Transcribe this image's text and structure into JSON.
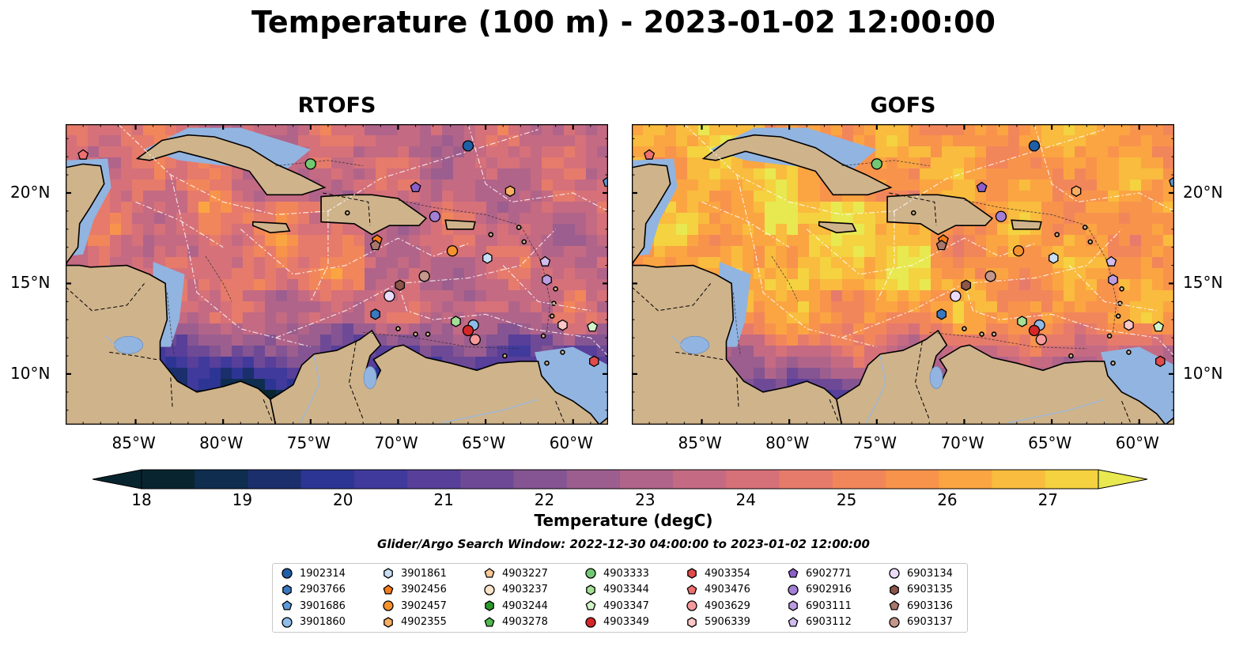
{
  "title": "Temperature (100 m) - 2023-01-02 12:00:00",
  "panels": [
    {
      "title": "RTOFS",
      "palette_bias": -1
    },
    {
      "title": "GOFS",
      "palette_bias": 1
    }
  ],
  "map": {
    "lon_range": [
      -89,
      -58
    ],
    "lat_range": [
      7.2,
      23.8
    ],
    "lon_ticks": [
      "85°W",
      "80°W",
      "75°W",
      "70°W",
      "65°W",
      "60°W"
    ],
    "lat_ticks": [
      "20°N",
      "15°N",
      "10°N"
    ],
    "land_color": "#cfb38b",
    "shelf_color": "#92b4e0"
  },
  "colorbar": {
    "label": "Temperature (degC)",
    "ticks": [
      "18",
      "19",
      "20",
      "21",
      "22",
      "23",
      "24",
      "25",
      "26",
      "27"
    ],
    "colors": [
      "#08252f",
      "#0e2d4f",
      "#1b2f6c",
      "#2d3594",
      "#403a9c",
      "#573f9a",
      "#6e4a96",
      "#855492",
      "#9c5e8e",
      "#b1648a",
      "#c46a83",
      "#d6717a",
      "#e67b6b",
      "#f2865b",
      "#f8934c",
      "#fba542",
      "#f9bc3e",
      "#f4d240",
      "#e8e850"
    ]
  },
  "search_window": "Glider/Argo Search Window: 2022-12-30 04:00:00 to 2023-01-02 12:00:00",
  "legend": [
    {
      "id": "1902314",
      "shape": "circle",
      "color": "#1f5fa6"
    },
    {
      "id": "2903766",
      "shape": "hexagon",
      "color": "#3a78bf"
    },
    {
      "id": "3901686",
      "shape": "pentagon",
      "color": "#5b9bd9"
    },
    {
      "id": "3901860",
      "shape": "circle",
      "color": "#8fbce8"
    },
    {
      "id": "3901861",
      "shape": "hexagon",
      "color": "#c7def5"
    },
    {
      "id": "3902456",
      "shape": "pentagon",
      "color": "#f57c18"
    },
    {
      "id": "3902457",
      "shape": "circle",
      "color": "#f5922e"
    },
    {
      "id": "4902355",
      "shape": "hexagon",
      "color": "#f8ae62"
    },
    {
      "id": "4903227",
      "shape": "pentagon",
      "color": "#fbc896"
    },
    {
      "id": "4903237",
      "shape": "circle",
      "color": "#fde3c8"
    },
    {
      "id": "4903244",
      "shape": "hexagon",
      "color": "#2a9a2a"
    },
    {
      "id": "4903278",
      "shape": "pentagon",
      "color": "#4fb84f"
    },
    {
      "id": "4903333",
      "shape": "circle",
      "color": "#72c872"
    },
    {
      "id": "4903344",
      "shape": "hexagon",
      "color": "#a3df95"
    },
    {
      "id": "4903347",
      "shape": "pentagon",
      "color": "#d2f2c8"
    },
    {
      "id": "4903349",
      "shape": "circle",
      "color": "#d62728"
    },
    {
      "id": "4903354",
      "shape": "hexagon",
      "color": "#e34b4b"
    },
    {
      "id": "4903476",
      "shape": "pentagon",
      "color": "#ee7070"
    },
    {
      "id": "4903629",
      "shape": "circle",
      "color": "#f59a9a"
    },
    {
      "id": "5906339",
      "shape": "hexagon",
      "color": "#fbc7c7"
    },
    {
      "id": "6902771",
      "shape": "pentagon",
      "color": "#8c5fc9"
    },
    {
      "id": "6902916",
      "shape": "circle",
      "color": "#a37fd6"
    },
    {
      "id": "6903111",
      "shape": "hexagon",
      "color": "#bb9ee2"
    },
    {
      "id": "6903112",
      "shape": "pentagon",
      "color": "#d2bdee"
    },
    {
      "id": "6903134",
      "shape": "circle",
      "color": "#eadcf8"
    },
    {
      "id": "6903135",
      "shape": "hexagon",
      "color": "#8c564b"
    },
    {
      "id": "6903136",
      "shape": "pentagon",
      "color": "#a8766b"
    },
    {
      "id": "6903137",
      "shape": "circle",
      "color": "#c4968c"
    }
  ],
  "markers": [
    {
      "id": "1902314",
      "lon": -66.0,
      "lat": 22.6
    },
    {
      "id": "4903333",
      "lon": -75.0,
      "lat": 21.6
    },
    {
      "id": "6902771",
      "lon": -69.0,
      "lat": 20.3
    },
    {
      "id": "4902355",
      "lon": -63.6,
      "lat": 20.1
    },
    {
      "id": "6902916",
      "lon": -67.9,
      "lat": 18.7
    },
    {
      "id": "3902456",
      "lon": -71.2,
      "lat": 17.4
    },
    {
      "id": "6903136",
      "lon": -71.3,
      "lat": 17.1
    },
    {
      "id": "3902457",
      "lon": -66.9,
      "lat": 16.8
    },
    {
      "id": "3901861",
      "lon": -64.9,
      "lat": 16.4
    },
    {
      "id": "6903137",
      "lon": -68.5,
      "lat": 15.4
    },
    {
      "id": "6903111",
      "lon": -61.5,
      "lat": 15.2
    },
    {
      "id": "6903135",
      "lon": -69.9,
      "lat": 14.9
    },
    {
      "id": "6903134",
      "lon": -70.5,
      "lat": 14.3
    },
    {
      "id": "2903766",
      "lon": -71.3,
      "lat": 13.3
    },
    {
      "id": "4903344",
      "lon": -66.7,
      "lat": 12.9
    },
    {
      "id": "3901860",
      "lon": -65.7,
      "lat": 12.7
    },
    {
      "id": "5906339",
      "lon": -60.6,
      "lat": 12.7
    },
    {
      "id": "4903347",
      "lon": -58.9,
      "lat": 12.6
    },
    {
      "id": "4903349",
      "lon": -66.0,
      "lat": 12.4
    },
    {
      "id": "4903629",
      "lon": -65.6,
      "lat": 11.9
    },
    {
      "id": "4903354",
      "lon": -58.8,
      "lat": 10.7
    },
    {
      "id": "4903476",
      "lon": -88.0,
      "lat": 22.1
    },
    {
      "id": "3901686",
      "lon": -58.0,
      "lat": 20.6
    },
    {
      "id": "6903112",
      "lon": -61.6,
      "lat": 16.2
    }
  ]
}
